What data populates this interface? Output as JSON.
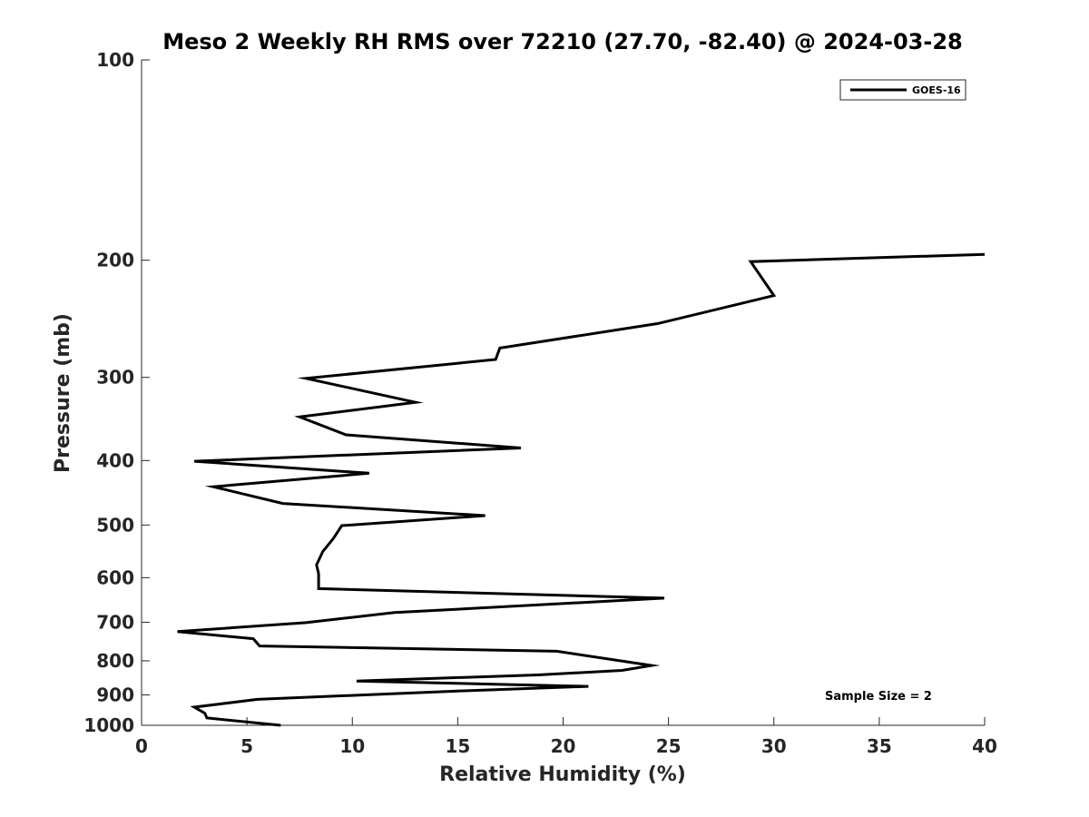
{
  "chart_data": {
    "type": "line",
    "title": "Meso 2 Weekly RH RMS over 72210 (27.70, -82.40) @ 2024-03-28",
    "xlabel": "Relative Humidity (%)",
    "ylabel": "Pressure (mb)",
    "xlim": [
      0,
      40
    ],
    "ylim": [
      100,
      1000
    ],
    "y_scale": "log",
    "y_reversed": true,
    "grid": false,
    "legend_position": "top-right",
    "xticks": [
      "0",
      "5",
      "10",
      "15",
      "20",
      "25",
      "30",
      "35",
      "40"
    ],
    "yticks": [
      "100",
      "200",
      "300",
      "400",
      "500",
      "600",
      "700",
      "800",
      "900",
      "1000"
    ],
    "annotation": "Sample Size = 2",
    "series": [
      {
        "name": "GOES-16",
        "color": "#000000",
        "points": [
          {
            "x": 40.0,
            "y": 196
          },
          {
            "x": 28.9,
            "y": 201
          },
          {
            "x": 30.0,
            "y": 226
          },
          {
            "x": 24.5,
            "y": 249
          },
          {
            "x": 17.0,
            "y": 271
          },
          {
            "x": 16.8,
            "y": 282
          },
          {
            "x": 7.8,
            "y": 301
          },
          {
            "x": 13.0,
            "y": 327
          },
          {
            "x": 7.5,
            "y": 344
          },
          {
            "x": 9.7,
            "y": 366
          },
          {
            "x": 18.0,
            "y": 383
          },
          {
            "x": 2.5,
            "y": 401
          },
          {
            "x": 10.8,
            "y": 418
          },
          {
            "x": 3.4,
            "y": 438
          },
          {
            "x": 6.7,
            "y": 464
          },
          {
            "x": 16.3,
            "y": 484
          },
          {
            "x": 9.5,
            "y": 501
          },
          {
            "x": 9.1,
            "y": 524
          },
          {
            "x": 8.6,
            "y": 548
          },
          {
            "x": 8.3,
            "y": 574
          },
          {
            "x": 8.4,
            "y": 592
          },
          {
            "x": 8.4,
            "y": 623
          },
          {
            "x": 24.8,
            "y": 644
          },
          {
            "x": 12.0,
            "y": 677
          },
          {
            "x": 7.8,
            "y": 701
          },
          {
            "x": 1.7,
            "y": 723
          },
          {
            "x": 5.3,
            "y": 741
          },
          {
            "x": 5.6,
            "y": 760
          },
          {
            "x": 19.7,
            "y": 774
          },
          {
            "x": 24.2,
            "y": 813
          },
          {
            "x": 22.8,
            "y": 827
          },
          {
            "x": 18.8,
            "y": 840
          },
          {
            "x": 10.2,
            "y": 858
          },
          {
            "x": 21.2,
            "y": 874
          },
          {
            "x": 15.0,
            "y": 888
          },
          {
            "x": 5.5,
            "y": 914
          },
          {
            "x": 2.5,
            "y": 939
          },
          {
            "x": 3.0,
            "y": 959
          },
          {
            "x": 3.1,
            "y": 975
          },
          {
            "x": 6.6,
            "y": 1000
          }
        ]
      }
    ]
  }
}
